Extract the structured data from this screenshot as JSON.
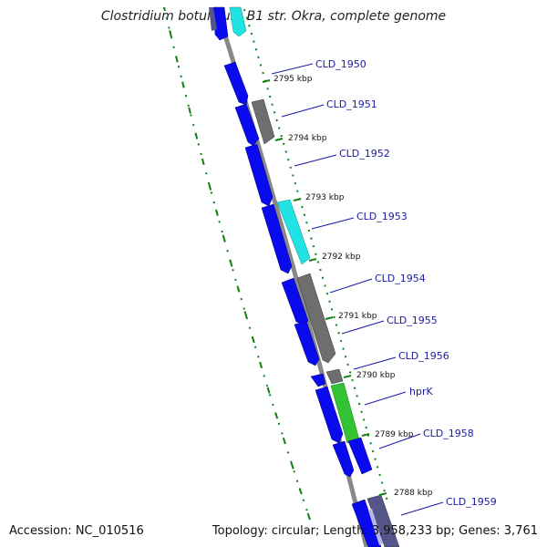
{
  "title": "Clostridium botulinum B1 str. Okra, complete genome",
  "footer": {
    "accession": "Accession: NC_010516",
    "summary": "Topology: circular; Length: 3,958,233 bp; Genes: 3,761"
  },
  "colors": {
    "backbone": "#888888",
    "tick": "#128012",
    "label": "#1a1aa6",
    "blue": "#0a0aee",
    "gray": "#6e6e6e",
    "cyan": "#22e3e3",
    "green": "#33c233",
    "purple": "#55558a"
  },
  "kbp_markers": [
    "2795 kbp",
    "2794 kbp",
    "2793 kbp",
    "2792 kbp",
    "2791 kbp",
    "2790 kbp",
    "2789 kbp",
    "2788 kbp"
  ],
  "gene_labels": [
    "CLD_1950",
    "CLD_1951",
    "CLD_1952",
    "CLD_1953",
    "CLD_1954",
    "CLD_1955",
    "CLD_1956",
    "hprK",
    "CLD_1958",
    "CLD_1959"
  ]
}
